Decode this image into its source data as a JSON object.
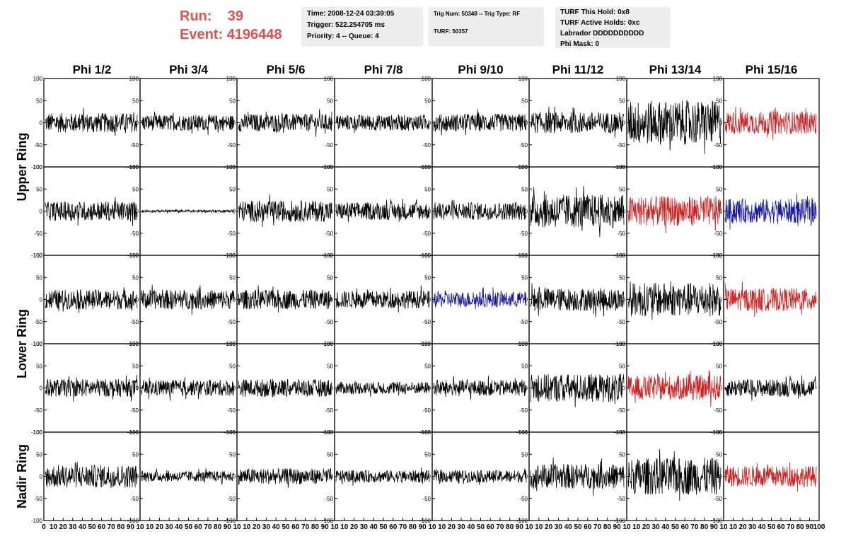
{
  "header": {
    "run_label": "Run:",
    "run_value": "39",
    "event_label": "Event:",
    "event_value": "4196448"
  },
  "info_box_1": {
    "time": "Time: 2008-12-24 03:39:05",
    "trigger": "Trigger: 522.254705 ms",
    "priority": "Priority: 4 -- Queue: 4"
  },
  "info_box_2": {
    "trig": "Trig Num: 50348 -- Trig Type: RF",
    "turf": "TURF: 50357"
  },
  "info_box_3": {
    "hold": "TURF This Hold: 0x8",
    "active": "TURF Active Holds: 0xc",
    "labrador": "Labrador DDDDDDDDDD",
    "phimask": "Phi Mask: 0"
  },
  "colors": {
    "header_red": "#d9544e",
    "trace_black": "#000000",
    "trace_red": "#cc2222",
    "trace_blue": "#1a1a9e",
    "box_bg": "#eeeeee"
  },
  "chart_data": {
    "type": "line",
    "columns": [
      "Phi 1/2",
      "Phi 3/4",
      "Phi 5/6",
      "Phi 7/8",
      "Phi 9/10",
      "Phi 11/12",
      "Phi 13/14",
      "Phi 15/16"
    ],
    "rows": [
      "Upper Ring",
      "Upper Ring",
      "Lower Ring",
      "Lower Ring",
      "Nadir Ring"
    ],
    "row_titles": [
      "Upper Ring",
      "Lower Ring",
      "Nadir Ring"
    ],
    "ylim": [
      -100,
      100
    ],
    "yticks": [
      -100,
      -50,
      0,
      50,
      100
    ],
    "xlim": [
      0,
      100
    ],
    "xticks_first": [
      "0",
      "10",
      "20",
      "30",
      "40",
      "50",
      "60",
      "70",
      "80",
      "90",
      "10"
    ],
    "xticks_other": [
      "10",
      "20",
      "30",
      "40",
      "50",
      "60",
      "70",
      "80",
      "90",
      "10"
    ],
    "xticks_last": [
      "10",
      "20",
      "30",
      "40",
      "50",
      "60",
      "70",
      "80",
      "90",
      "100"
    ],
    "trace_color": [
      [
        "black",
        "black",
        "black",
        "black",
        "black",
        "black",
        "black",
        "red"
      ],
      [
        "black",
        "black",
        "black",
        "black",
        "black",
        "black",
        "red",
        "blue"
      ],
      [
        "black",
        "black",
        "black",
        "black",
        "blue",
        "black",
        "black",
        "red"
      ],
      [
        "black",
        "black",
        "black",
        "black",
        "black",
        "black",
        "red",
        "black"
      ],
      [
        "black",
        "black",
        "black",
        "black",
        "black",
        "black",
        "black",
        "red"
      ]
    ],
    "trace_amplitude": [
      [
        22,
        18,
        20,
        18,
        20,
        24,
        50,
        26
      ],
      [
        22,
        3,
        24,
        20,
        20,
        38,
        34,
        28
      ],
      [
        22,
        22,
        22,
        20,
        18,
        26,
        38,
        26
      ],
      [
        20,
        18,
        20,
        14,
        18,
        32,
        28,
        20
      ],
      [
        26,
        12,
        18,
        14,
        14,
        28,
        42,
        24
      ]
    ]
  }
}
